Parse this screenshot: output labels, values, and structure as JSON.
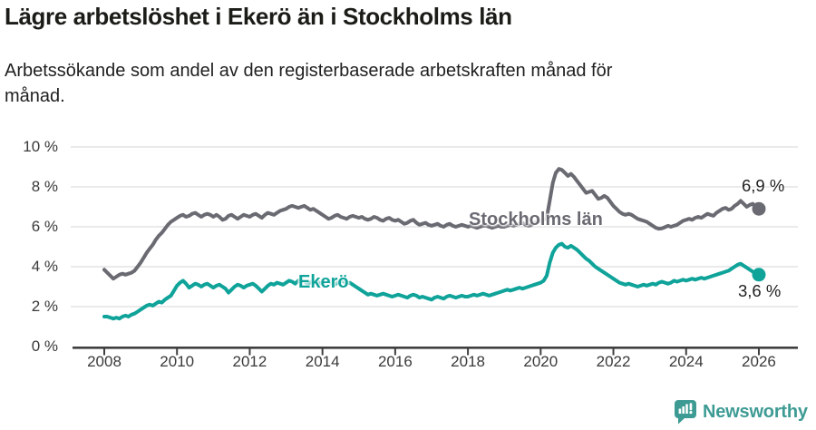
{
  "page": {
    "title": "Lägre arbetslöshet i Ekerö än i Stockholms län",
    "subtitle": "Arbetssökande som andel av den registerbaserade arbetskraften månad för månad.",
    "subtitle_lines": [
      "Arbetssökande som andel av den registerbaserade arbetskraften månad för",
      "månad."
    ]
  },
  "footer": {
    "brand": "Newsworthy",
    "brand_color": "#3d9b94",
    "logo_icon": "bar-chart-speech-bubble-icon"
  },
  "chart_data": {
    "type": "line",
    "title": "Lägre arbetslöshet i Ekerö än i Stockholms län",
    "xlabel": "",
    "ylabel": "",
    "x_unit": "year-month",
    "x_start": "2008-01",
    "x_end": "2026-01",
    "ylim": [
      0,
      10
    ],
    "grid": "horizontal",
    "legend_position": "inline-labels",
    "axis_color": "#3f3f3f",
    "grid_color": "#e3e3e3",
    "tick_text_color": "#3a3a3a",
    "value_label_color": "#222222",
    "y_ticks": [
      {
        "value": 0,
        "label": "0 %"
      },
      {
        "value": 2,
        "label": "2 %"
      },
      {
        "value": 4,
        "label": "4 %"
      },
      {
        "value": 6,
        "label": "6 %"
      },
      {
        "value": 8,
        "label": "8 %"
      },
      {
        "value": 10,
        "label": "10 %"
      }
    ],
    "x_ticks": [
      {
        "year": 2008,
        "label": "2008"
      },
      {
        "year": 2010,
        "label": "2010"
      },
      {
        "year": 2012,
        "label": "2012"
      },
      {
        "year": 2014,
        "label": "2014"
      },
      {
        "year": 2016,
        "label": "2016"
      },
      {
        "year": 2018,
        "label": "2018"
      },
      {
        "year": 2020,
        "label": "2020"
      },
      {
        "year": 2022,
        "label": "2022"
      },
      {
        "year": 2024,
        "label": "2024"
      },
      {
        "year": 2026,
        "label": "2026"
      }
    ],
    "series": [
      {
        "id": "stockholm",
        "name": "Stockholms län",
        "color": "#6a6a72",
        "end_label": "6,9 %",
        "end_value": 6.9,
        "values": [
          3.85,
          3.7,
          3.55,
          3.4,
          3.5,
          3.6,
          3.65,
          3.6,
          3.65,
          3.7,
          3.8,
          4.0,
          4.2,
          4.45,
          4.7,
          4.9,
          5.1,
          5.35,
          5.55,
          5.7,
          5.9,
          6.1,
          6.25,
          6.35,
          6.45,
          6.55,
          6.6,
          6.5,
          6.55,
          6.65,
          6.7,
          6.6,
          6.5,
          6.6,
          6.65,
          6.6,
          6.5,
          6.6,
          6.5,
          6.35,
          6.4,
          6.55,
          6.6,
          6.5,
          6.4,
          6.5,
          6.6,
          6.55,
          6.5,
          6.6,
          6.65,
          6.55,
          6.45,
          6.6,
          6.7,
          6.65,
          6.6,
          6.7,
          6.8,
          6.85,
          6.9,
          7.0,
          7.05,
          7.0,
          6.95,
          7.0,
          7.05,
          6.95,
          6.85,
          6.9,
          6.8,
          6.7,
          6.6,
          6.5,
          6.4,
          6.45,
          6.55,
          6.6,
          6.5,
          6.45,
          6.4,
          6.5,
          6.55,
          6.5,
          6.45,
          6.5,
          6.4,
          6.35,
          6.4,
          6.5,
          6.45,
          6.35,
          6.3,
          6.4,
          6.45,
          6.35,
          6.3,
          6.35,
          6.25,
          6.15,
          6.2,
          6.3,
          6.35,
          6.2,
          6.1,
          6.15,
          6.2,
          6.1,
          6.05,
          6.1,
          6.15,
          6.05,
          6.0,
          6.1,
          6.15,
          6.05,
          6.0,
          6.05,
          6.1,
          6.05,
          6.0,
          6.05,
          6.0,
          5.95,
          6.0,
          6.05,
          6.05,
          6.0,
          5.95,
          6.0,
          6.05,
          6.0,
          6.0,
          6.05,
          6.1,
          6.05,
          6.1,
          6.15,
          6.2,
          6.1,
          6.05,
          6.1,
          6.2,
          6.25,
          6.3,
          6.35,
          6.45,
          7.3,
          8.2,
          8.7,
          8.9,
          8.85,
          8.7,
          8.55,
          8.65,
          8.5,
          8.3,
          8.1,
          7.9,
          7.7,
          7.75,
          7.8,
          7.6,
          7.4,
          7.45,
          7.55,
          7.45,
          7.25,
          7.05,
          6.9,
          6.75,
          6.65,
          6.6,
          6.65,
          6.6,
          6.5,
          6.4,
          6.35,
          6.3,
          6.25,
          6.15,
          6.05,
          5.95,
          5.9,
          5.92,
          5.98,
          6.05,
          6.0,
          6.05,
          6.1,
          6.2,
          6.3,
          6.35,
          6.4,
          6.35,
          6.45,
          6.5,
          6.45,
          6.55,
          6.65,
          6.6,
          6.55,
          6.7,
          6.8,
          6.9,
          6.95,
          6.85,
          6.9,
          7.05,
          7.15,
          7.3,
          7.15,
          7.0,
          7.1,
          7.15,
          7.0,
          6.9
        ]
      },
      {
        "id": "ekero",
        "name": "Ekerö",
        "color": "#0fa39a",
        "end_label": "3,6 %",
        "end_value": 3.6,
        "values": [
          1.5,
          1.5,
          1.45,
          1.4,
          1.45,
          1.4,
          1.5,
          1.55,
          1.5,
          1.6,
          1.65,
          1.75,
          1.85,
          1.95,
          2.05,
          2.1,
          2.05,
          2.15,
          2.25,
          2.2,
          2.35,
          2.45,
          2.55,
          2.8,
          3.05,
          3.2,
          3.3,
          3.15,
          2.95,
          3.05,
          3.15,
          3.1,
          3.0,
          3.1,
          3.15,
          3.05,
          2.95,
          3.05,
          3.1,
          3.0,
          2.9,
          2.7,
          2.85,
          3.0,
          3.1,
          3.05,
          2.95,
          3.05,
          3.1,
          3.15,
          3.05,
          2.9,
          2.75,
          2.9,
          3.05,
          3.15,
          3.1,
          3.2,
          3.15,
          3.1,
          3.2,
          3.3,
          3.25,
          3.15,
          3.3,
          3.35,
          3.25,
          3.15,
          3.2,
          3.3,
          3.25,
          3.2,
          3.15,
          3.25,
          3.3,
          3.2,
          3.1,
          3.2,
          3.3,
          3.25,
          3.15,
          3.2,
          3.1,
          3.0,
          2.9,
          2.8,
          2.7,
          2.6,
          2.65,
          2.6,
          2.55,
          2.6,
          2.65,
          2.6,
          2.55,
          2.5,
          2.55,
          2.6,
          2.55,
          2.5,
          2.45,
          2.55,
          2.6,
          2.55,
          2.45,
          2.5,
          2.45,
          2.4,
          2.35,
          2.45,
          2.5,
          2.45,
          2.4,
          2.5,
          2.55,
          2.5,
          2.45,
          2.5,
          2.55,
          2.5,
          2.5,
          2.55,
          2.6,
          2.55,
          2.6,
          2.65,
          2.6,
          2.55,
          2.6,
          2.65,
          2.7,
          2.75,
          2.8,
          2.85,
          2.8,
          2.85,
          2.9,
          2.95,
          2.9,
          2.95,
          3.0,
          3.05,
          3.1,
          3.15,
          3.2,
          3.3,
          3.55,
          4.2,
          4.7,
          4.95,
          5.1,
          5.15,
          5.0,
          4.95,
          5.05,
          4.95,
          4.85,
          4.7,
          4.55,
          4.4,
          4.3,
          4.15,
          4.0,
          3.9,
          3.8,
          3.7,
          3.6,
          3.5,
          3.4,
          3.3,
          3.2,
          3.15,
          3.1,
          3.15,
          3.1,
          3.05,
          3.0,
          3.05,
          3.1,
          3.05,
          3.1,
          3.15,
          3.1,
          3.2,
          3.25,
          3.2,
          3.15,
          3.2,
          3.3,
          3.25,
          3.3,
          3.35,
          3.3,
          3.35,
          3.4,
          3.35,
          3.4,
          3.45,
          3.4,
          3.45,
          3.5,
          3.55,
          3.6,
          3.65,
          3.7,
          3.75,
          3.8,
          3.9,
          4.0,
          4.1,
          4.15,
          4.05,
          3.95,
          3.85,
          3.75,
          3.7,
          3.6
        ]
      }
    ]
  }
}
